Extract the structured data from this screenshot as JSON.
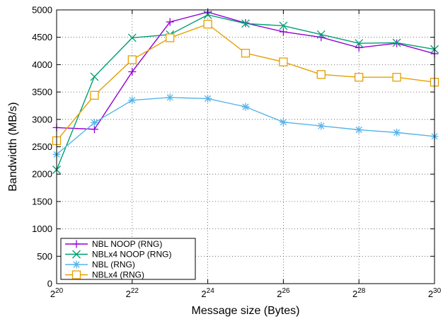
{
  "chart_data": {
    "type": "line",
    "title": "",
    "xlabel": "Message size (Bytes)",
    "ylabel": "Bandwidth (MB/s)",
    "x_scale": "log2",
    "x": [
      1048576,
      2097152,
      4194304,
      8388608,
      16777216,
      33554432,
      67108864,
      134217728,
      268435456,
      536870912,
      1073741824
    ],
    "xlim": [
      1048576,
      1073741824
    ],
    "ylim": [
      0,
      5000
    ],
    "x_ticks": [
      {
        "value": 1048576,
        "base": "2",
        "exp": "20"
      },
      {
        "value": 4194304,
        "base": "2",
        "exp": "22"
      },
      {
        "value": 16777216,
        "base": "2",
        "exp": "24"
      },
      {
        "value": 67108864,
        "base": "2",
        "exp": "26"
      },
      {
        "value": 268435456,
        "base": "2",
        "exp": "28"
      },
      {
        "value": 1073741824,
        "base": "2",
        "exp": "30"
      }
    ],
    "y_ticks": [
      0,
      500,
      1000,
      1500,
      2000,
      2500,
      3000,
      3500,
      4000,
      4500,
      5000
    ],
    "grid": true,
    "legend_position": "bottom-left",
    "series": [
      {
        "name": "NBL NOOP (RNG)",
        "color": "#9400d3",
        "marker": "plus",
        "values": [
          2850,
          2820,
          3870,
          4780,
          4960,
          4760,
          4600,
          4500,
          4310,
          4390,
          4200
        ]
      },
      {
        "name": "NBLx4 NOOP (RNG)",
        "color": "#009e73",
        "marker": "x",
        "values": [
          2080,
          3780,
          4490,
          4550,
          4910,
          4750,
          4710,
          4550,
          4390,
          4400,
          4280
        ]
      },
      {
        "name": "NBL (RNG)",
        "color": "#56b4e9",
        "marker": "star",
        "values": [
          2360,
          2940,
          3350,
          3400,
          3380,
          3230,
          2950,
          2880,
          2810,
          2760,
          2690
        ]
      },
      {
        "name": "NBLx4 (RNG)",
        "color": "#e69f00",
        "marker": "square",
        "values": [
          2610,
          3440,
          4090,
          4490,
          4740,
          4210,
          4050,
          3820,
          3770,
          3770,
          3680
        ]
      }
    ]
  }
}
